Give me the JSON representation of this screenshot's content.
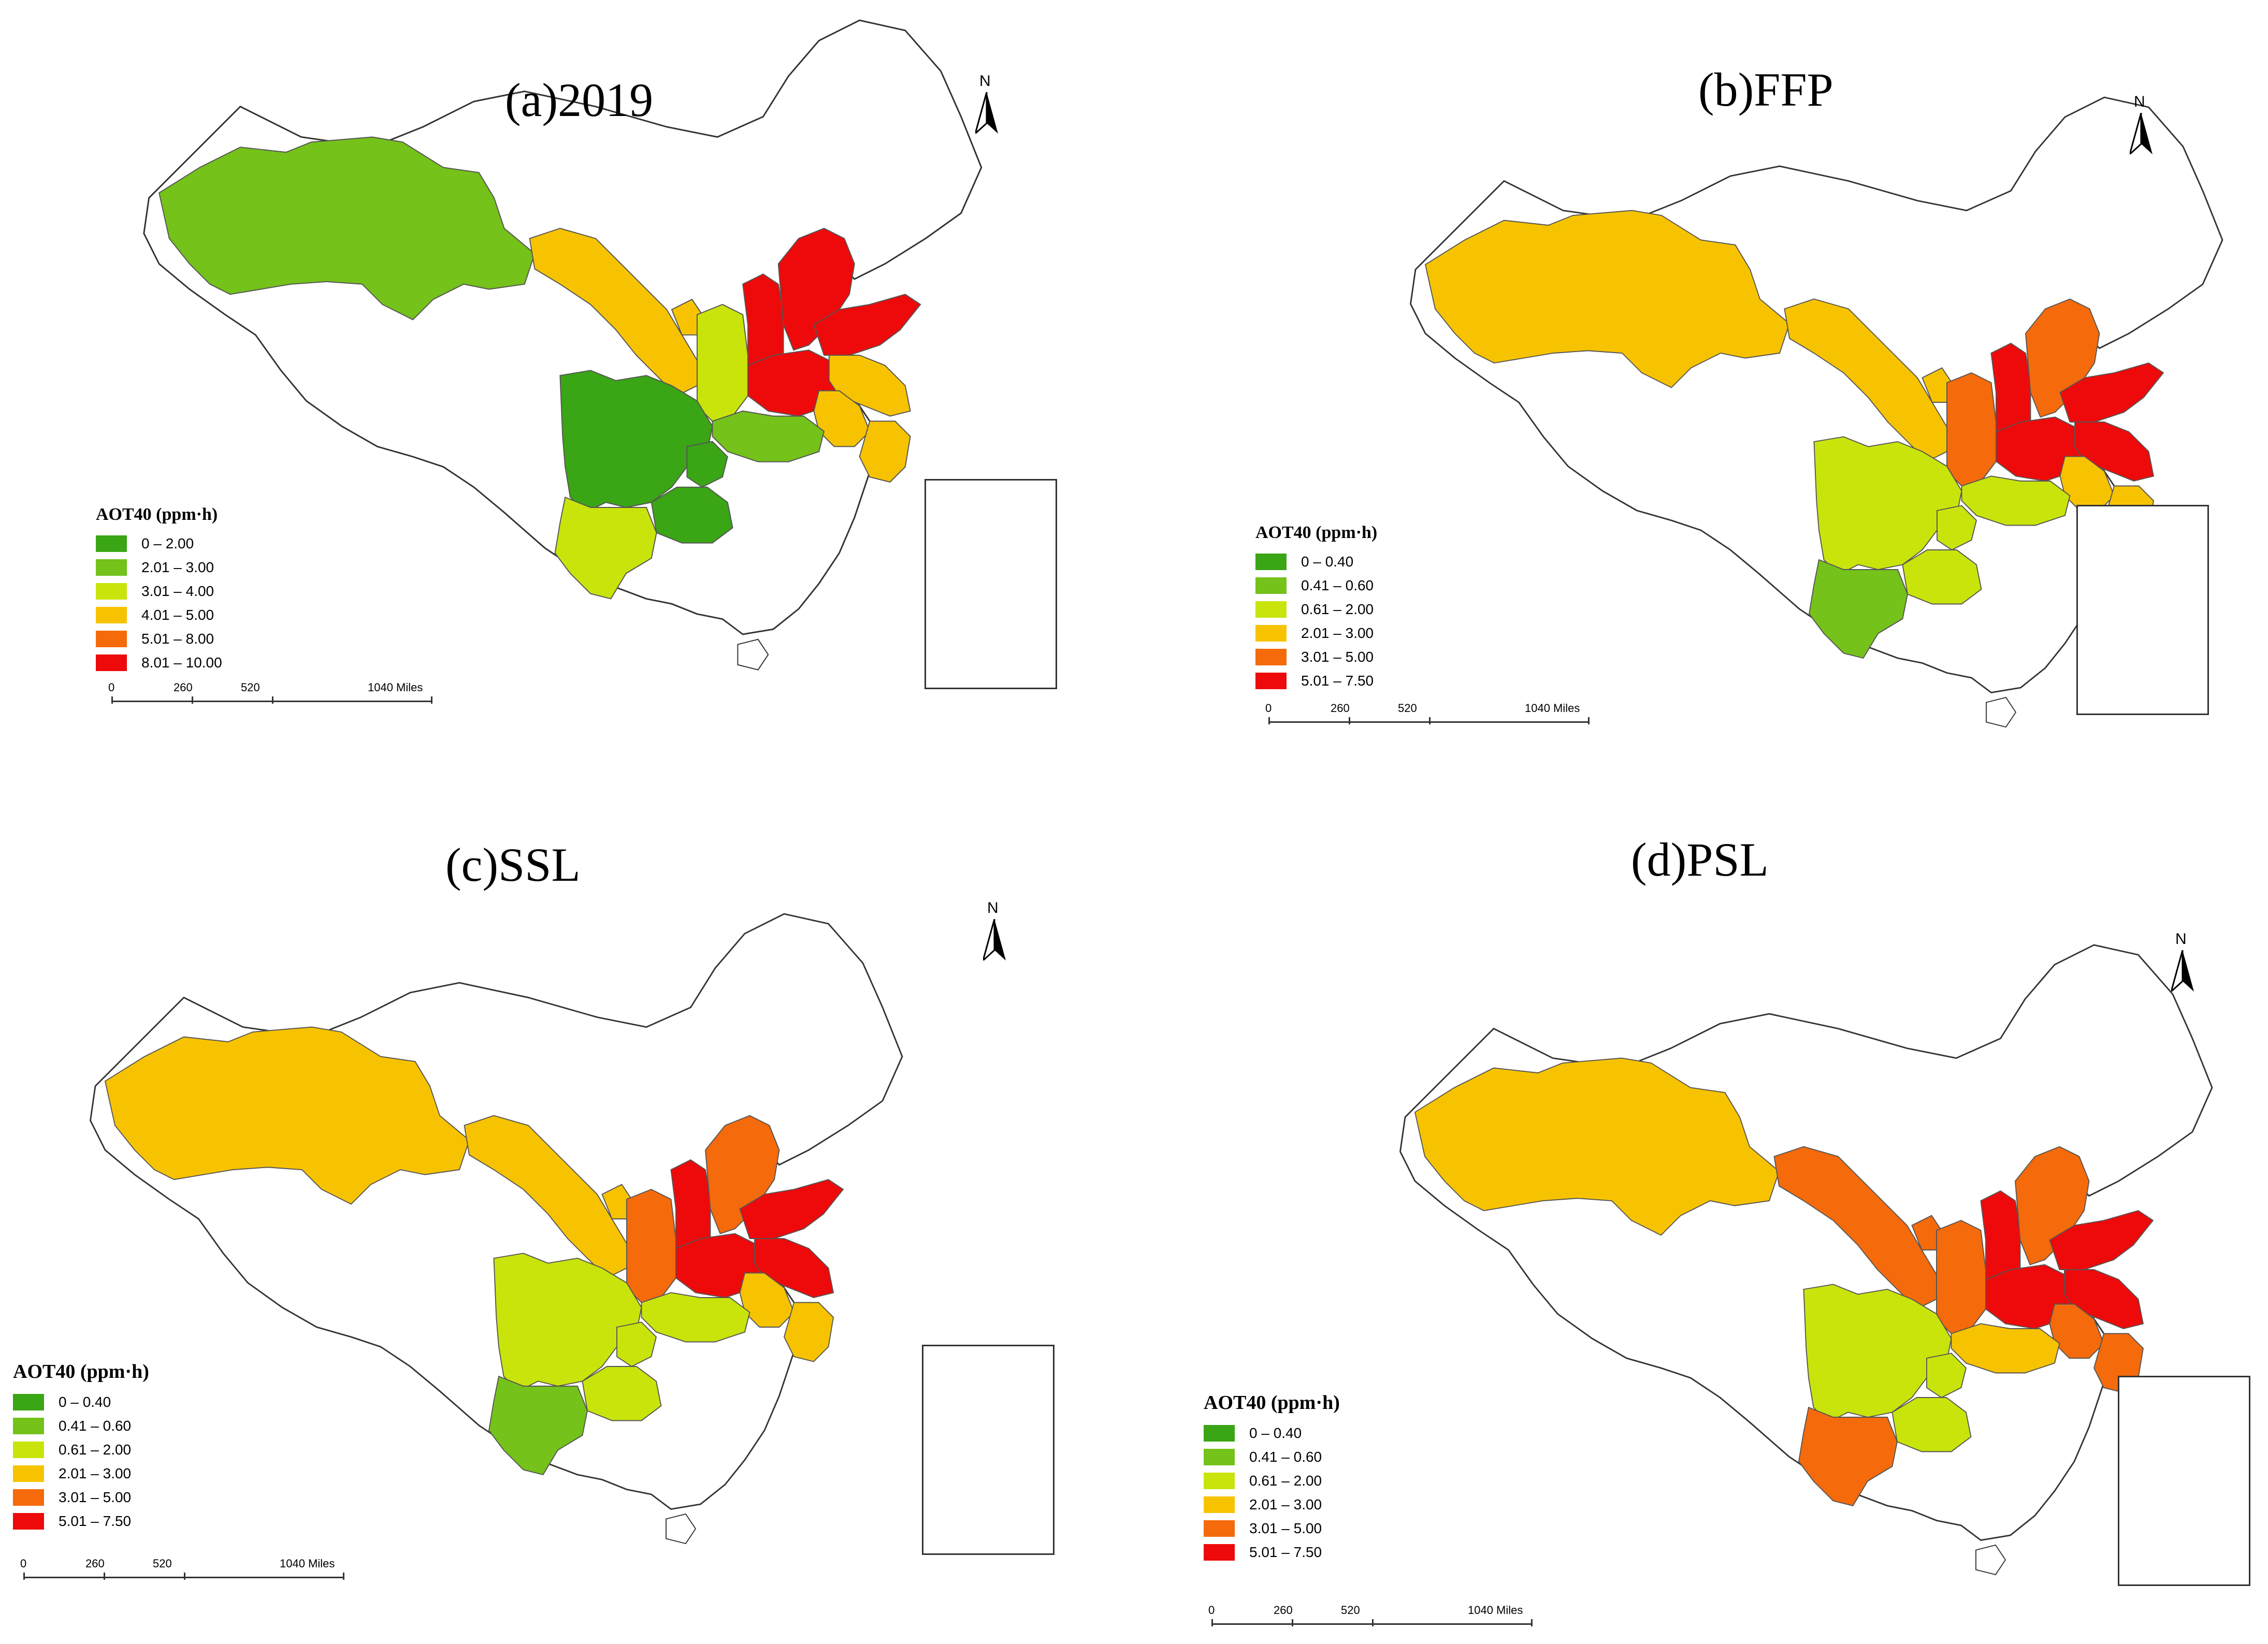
{
  "legend_title": "AOT40 (ppm·h)",
  "north_label": "N",
  "scale_labels": [
    "0",
    "260",
    "520",
    "1040 Miles"
  ],
  "palette": {
    "dark_green": "#3aa515",
    "green": "#74c21a",
    "yellow_green": "#c9e40b",
    "amber": "#f7c300",
    "orange": "#f56a0b",
    "red": "#ee0a0a",
    "white": "#ffffff"
  },
  "panels": [
    {
      "title": "(a)2019",
      "legend": [
        {
          "label": "0 – 2.00",
          "color": "#3aa515"
        },
        {
          "label": "2.01 – 3.00",
          "color": "#74c21a"
        },
        {
          "label": "3.01 – 4.00",
          "color": "#c9e40b"
        },
        {
          "label": "4.01 – 5.00",
          "color": "#f7c300"
        },
        {
          "label": "5.01 – 8.00",
          "color": "#f56a0b"
        },
        {
          "label": "8.01 – 10.00",
          "color": "#ee0a0a"
        }
      ],
      "regions": {
        "xinjiang": "#74c21a",
        "gansu": "#f7c300",
        "ningxia": "#f7c300",
        "shaanxi": "#c9e40b",
        "shanxi": "#ee0a0a",
        "hebei": "#ee0a0a",
        "shandong": "#ee0a0a",
        "henan": "#ee0a0a",
        "jiangsu": "#f7c300",
        "anhui": "#f7c300",
        "hubei": "#74c21a",
        "zhejiang": "#f7c300",
        "sichuan": "#3aa515",
        "chongqing": "#3aa515",
        "guizhou": "#3aa515",
        "yunnan": "#c9e40b"
      }
    },
    {
      "title": "(b)FFP",
      "legend": [
        {
          "label": "0 – 0.40",
          "color": "#3aa515"
        },
        {
          "label": "0.41 – 0.60",
          "color": "#74c21a"
        },
        {
          "label": "0.61 – 2.00",
          "color": "#c9e40b"
        },
        {
          "label": "2.01 – 3.00",
          "color": "#f7c300"
        },
        {
          "label": "3.01 – 5.00",
          "color": "#f56a0b"
        },
        {
          "label": "5.01 – 7.50",
          "color": "#ee0a0a"
        }
      ],
      "regions": {
        "xinjiang": "#f7c300",
        "gansu": "#f7c300",
        "ningxia": "#f7c300",
        "shaanxi": "#f56a0b",
        "shanxi": "#ee0a0a",
        "hebei": "#f56a0b",
        "shandong": "#ee0a0a",
        "henan": "#ee0a0a",
        "jiangsu": "#ee0a0a",
        "anhui": "#f7c300",
        "hubei": "#c9e40b",
        "zhejiang": "#f7c300",
        "sichuan": "#c9e40b",
        "chongqing": "#c9e40b",
        "guizhou": "#c9e40b",
        "yunnan": "#74c21a"
      }
    },
    {
      "title": "(c)SSL",
      "legend": [
        {
          "label": "0 – 0.40",
          "color": "#3aa515"
        },
        {
          "label": "0.41 – 0.60",
          "color": "#74c21a"
        },
        {
          "label": "0.61 – 2.00",
          "color": "#c9e40b"
        },
        {
          "label": "2.01 – 3.00",
          "color": "#f7c300"
        },
        {
          "label": "3.01 – 5.00",
          "color": "#f56a0b"
        },
        {
          "label": "5.01 – 7.50",
          "color": "#ee0a0a"
        }
      ],
      "regions": {
        "xinjiang": "#f7c300",
        "gansu": "#f7c300",
        "ningxia": "#f7c300",
        "shaanxi": "#f56a0b",
        "shanxi": "#ee0a0a",
        "hebei": "#f56a0b",
        "shandong": "#ee0a0a",
        "henan": "#ee0a0a",
        "jiangsu": "#ee0a0a",
        "anhui": "#f7c300",
        "hubei": "#c9e40b",
        "zhejiang": "#f7c300",
        "sichuan": "#c9e40b",
        "chongqing": "#c9e40b",
        "guizhou": "#c9e40b",
        "yunnan": "#74c21a"
      }
    },
    {
      "title": "(d)PSL",
      "legend": [
        {
          "label": "0 – 0.40",
          "color": "#3aa515"
        },
        {
          "label": "0.41 – 0.60",
          "color": "#74c21a"
        },
        {
          "label": "0.61 – 2.00",
          "color": "#c9e40b"
        },
        {
          "label": "2.01 – 3.00",
          "color": "#f7c300"
        },
        {
          "label": "3.01 – 5.00",
          "color": "#f56a0b"
        },
        {
          "label": "5.01 – 7.50",
          "color": "#ee0a0a"
        }
      ],
      "regions": {
        "xinjiang": "#f7c300",
        "gansu": "#f56a0b",
        "ningxia": "#f56a0b",
        "shaanxi": "#f56a0b",
        "shanxi": "#ee0a0a",
        "hebei": "#f56a0b",
        "shandong": "#ee0a0a",
        "henan": "#ee0a0a",
        "jiangsu": "#ee0a0a",
        "anhui": "#f56a0b",
        "hubei": "#f7c300",
        "zhejiang": "#f56a0b",
        "sichuan": "#c9e40b",
        "chongqing": "#c9e40b",
        "guizhou": "#c9e40b",
        "yunnan": "#f56a0b"
      }
    }
  ]
}
